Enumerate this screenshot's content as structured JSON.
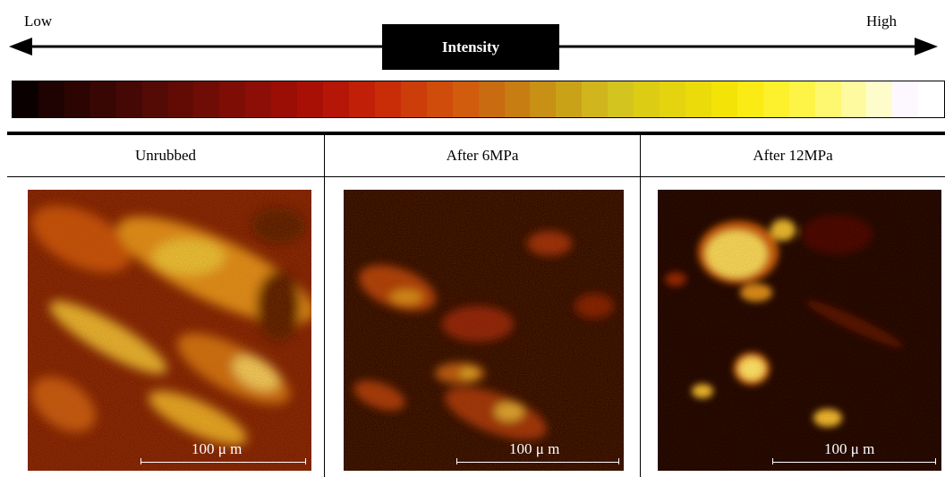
{
  "legend": {
    "low_label": "Low",
    "high_label": "High",
    "title": "Intensity",
    "colorbar": [
      "#0b0000",
      "#1e0302",
      "#2c0503",
      "#380704",
      "#460804",
      "#540a05",
      "#620b05",
      "#700c06",
      "#7e0d06",
      "#8c0e06",
      "#9a0e06",
      "#a81006",
      "#b51607",
      "#c11f07",
      "#c82d08",
      "#cc3d09",
      "#cf4c0b",
      "#d15c0e",
      "#c96b10",
      "#c77d12",
      "#c89014",
      "#c9a218",
      "#d1b51d",
      "#d4c41f",
      "#dccc14",
      "#e4d30f",
      "#ecdb0b",
      "#f4e306",
      "#fbeb14",
      "#fdf02c",
      "#fef448",
      "#fef870",
      "#fefaa0",
      "#fffccc",
      "#fdf8ff",
      "#ffffff"
    ]
  },
  "columns": [
    {
      "header": "Unrubbed",
      "scale_bar": "100 μ m"
    },
    {
      "header": "After 6MPa",
      "scale_bar": "100 μ m"
    },
    {
      "header": "After 12MPa",
      "scale_bar": "100 μ m"
    }
  ]
}
